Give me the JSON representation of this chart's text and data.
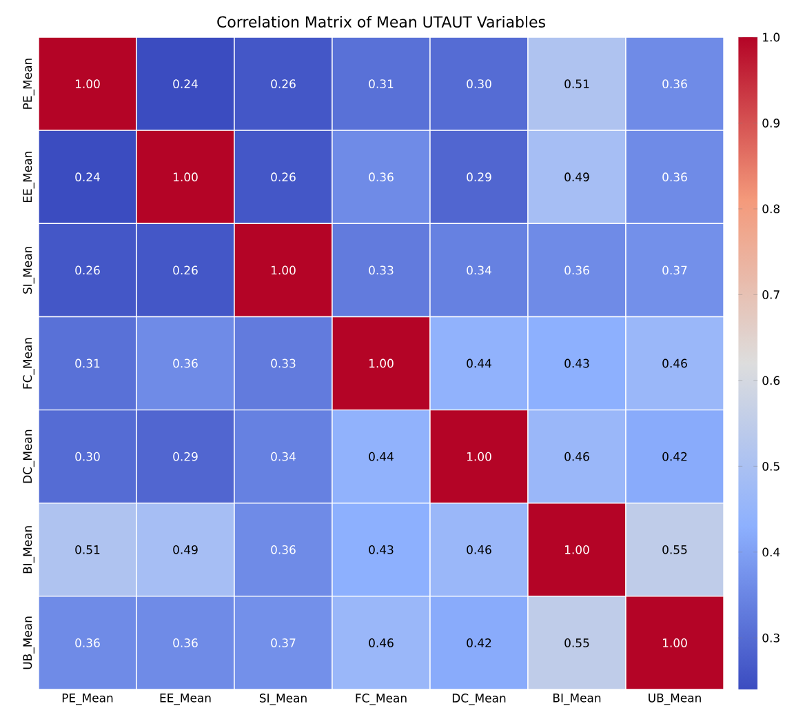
{
  "chart_data": {
    "type": "heatmap",
    "title": "Correlation Matrix of Mean UTAUT Variables",
    "categories": [
      "PE_Mean",
      "EE_Mean",
      "SI_Mean",
      "FC_Mean",
      "DC_Mean",
      "BI_Mean",
      "UB_Mean"
    ],
    "y_categories": [
      "PE_Mean",
      "EE_Mean",
      "SI_Mean",
      "FC_Mean",
      "DC_Mean",
      "BI_Mean",
      "UB_Mean"
    ],
    "cells": [
      [
        1.0,
        0.24,
        0.26,
        0.31,
        0.3,
        0.51,
        0.36
      ],
      [
        0.24,
        1.0,
        0.26,
        0.36,
        0.29,
        0.49,
        0.36
      ],
      [
        0.26,
        0.26,
        1.0,
        0.33,
        0.34,
        0.36,
        0.37
      ],
      [
        0.31,
        0.36,
        0.33,
        1.0,
        0.44,
        0.43,
        0.46
      ],
      [
        0.3,
        0.29,
        0.34,
        0.44,
        1.0,
        0.46,
        0.42
      ],
      [
        0.51,
        0.49,
        0.36,
        0.43,
        0.46,
        1.0,
        0.55
      ],
      [
        0.36,
        0.36,
        0.37,
        0.46,
        0.42,
        0.55,
        1.0
      ]
    ],
    "cell_labels": [
      [
        "1.00",
        "0.24",
        "0.26",
        "0.31",
        "0.30",
        "0.51",
        "0.36"
      ],
      [
        "0.24",
        "1.00",
        "0.26",
        "0.36",
        "0.29",
        "0.49",
        "0.36"
      ],
      [
        "0.26",
        "0.26",
        "1.00",
        "0.33",
        "0.34",
        "0.36",
        "0.37"
      ],
      [
        "0.31",
        "0.36",
        "0.33",
        "1.00",
        "0.44",
        "0.43",
        "0.46"
      ],
      [
        "0.30",
        "0.29",
        "0.34",
        "0.44",
        "1.00",
        "0.46",
        "0.42"
      ],
      [
        "0.51",
        "0.49",
        "0.36",
        "0.43",
        "0.46",
        "1.00",
        "0.55"
      ],
      [
        "0.36",
        "0.36",
        "0.37",
        "0.46",
        "0.42",
        "0.55",
        "1.00"
      ]
    ],
    "clim": [
      0.24,
      1.0
    ],
    "cticks": [
      {
        "value": 0.3,
        "label": "0.3"
      },
      {
        "value": 0.4,
        "label": "0.4"
      },
      {
        "value": 0.5,
        "label": "0.5"
      },
      {
        "value": 0.6,
        "label": "0.6"
      },
      {
        "value": 0.7,
        "label": "0.7"
      },
      {
        "value": 0.8,
        "label": "0.8"
      },
      {
        "value": 0.9,
        "label": "0.9"
      },
      {
        "value": 1.0,
        "label": "1.0"
      }
    ]
  }
}
